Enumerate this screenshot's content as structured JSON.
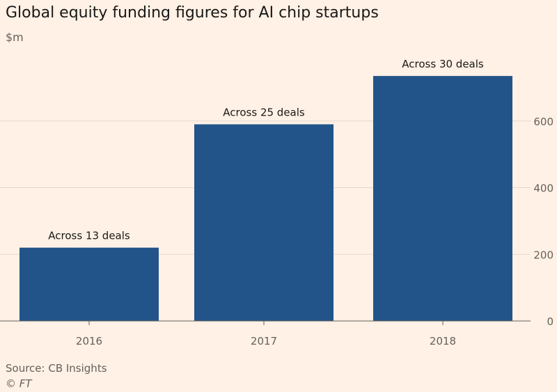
{
  "chart_data": {
    "type": "bar",
    "title": "Global equity funding figures for AI chip startups",
    "unit": "$m",
    "categories": [
      "2016",
      "2017",
      "2018"
    ],
    "values": [
      220,
      590,
      735
    ],
    "annotations": [
      "Across 13 deals",
      "Across 25 deals",
      "Across 30 deals"
    ],
    "ylim": [
      0,
      800
    ],
    "yticks": [
      0,
      200,
      400,
      600
    ],
    "y_axis_side": "right",
    "grid": true,
    "bar_color": "#22548a",
    "grid_color": "#e4d8ce"
  },
  "source": "Source: CB Insights",
  "credit": "© FT"
}
